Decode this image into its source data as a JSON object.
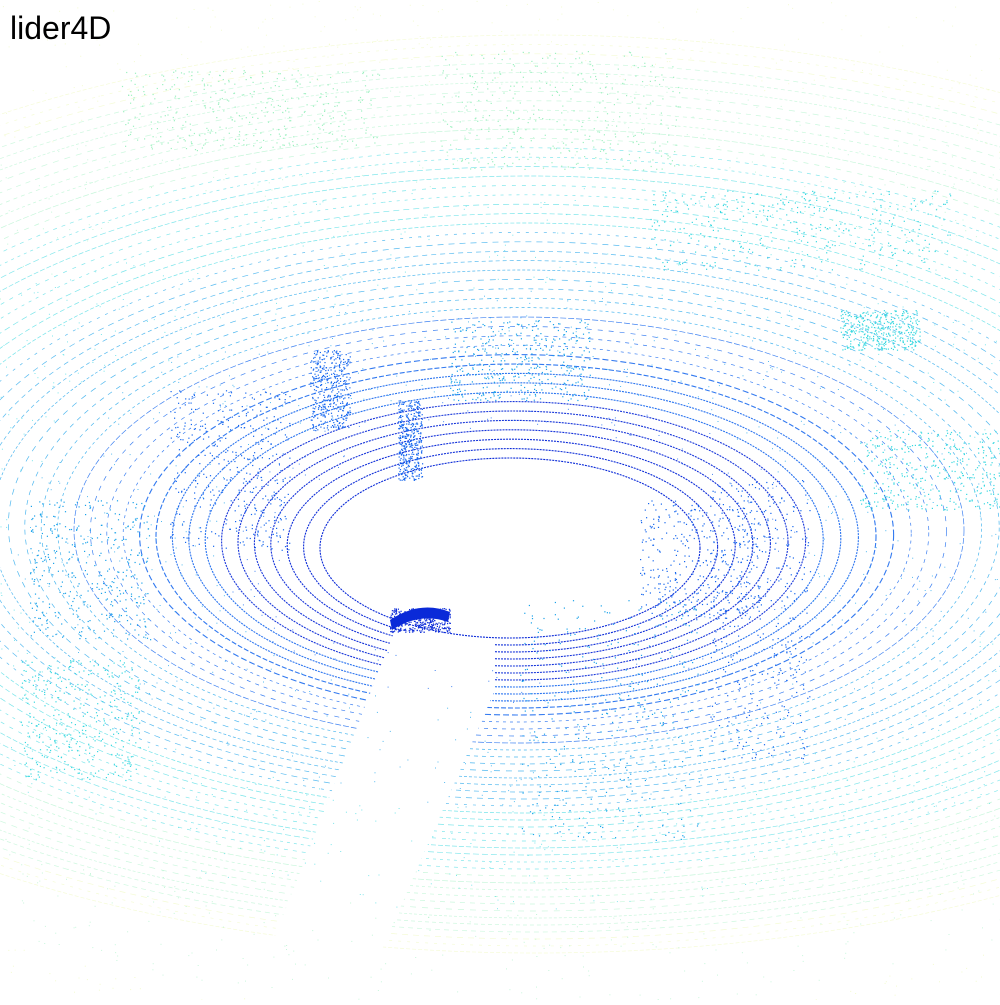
{
  "title": "lider4D",
  "scene": {
    "type": "lidar-point-cloud",
    "color_scale": [
      "#0a2ad8",
      "#1566ee",
      "#1aa2ea",
      "#39d8e0",
      "#9df0c0",
      "#e8f7a6"
    ],
    "background": "#ffffff"
  }
}
